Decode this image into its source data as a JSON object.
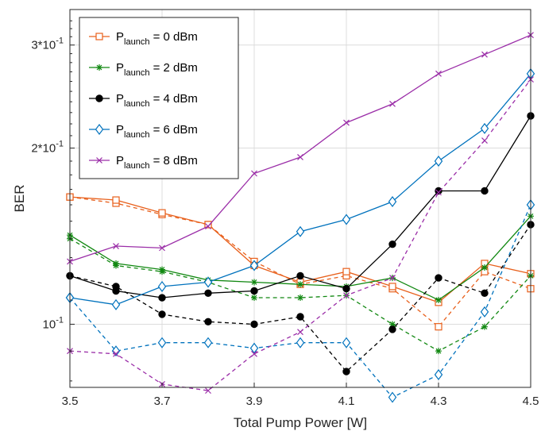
{
  "chart_data": {
    "type": "line",
    "xlabel": "Total Pump Power [W]",
    "ylabel": "BER",
    "x": [
      3.5,
      3.6,
      3.7,
      3.8,
      3.9,
      4.0,
      4.1,
      4.2,
      4.3,
      4.4,
      4.5
    ],
    "xlim": [
      3.5,
      4.5
    ],
    "ylim": [
      0.078,
      0.345
    ],
    "yscale": "log",
    "xticks": [
      "3.5",
      "3.7",
      "3.9",
      "4.1",
      "4.3",
      "4.5"
    ],
    "yticks": [
      {
        "value": 0.1,
        "label": "10^-1"
      },
      {
        "value": 0.2,
        "label": "2*10^-1"
      },
      {
        "value": 0.3,
        "label": "3*10^-1"
      }
    ],
    "grid": true,
    "legend_position": "top-left",
    "series": [
      {
        "legend_main": "P",
        "legend_sub": "launch",
        "legend_rest": " = 0 dBm",
        "color": "#E8601C",
        "marker": "square",
        "solid": [
          0.165,
          0.163,
          0.155,
          0.148,
          0.126,
          0.118,
          0.123,
          0.116,
          0.109,
          0.127,
          0.122
        ],
        "dashed": [
          0.165,
          0.161,
          0.154,
          0.148,
          0.128,
          0.117,
          0.121,
          0.115,
          0.099,
          0.123,
          0.115
        ]
      },
      {
        "legend_main": "P",
        "legend_sub": "launch",
        "legend_rest": " = 2 dBm",
        "color": "#118811",
        "marker": "star",
        "solid": [
          0.142,
          0.127,
          0.124,
          0.119,
          0.118,
          0.117,
          0.116,
          0.12,
          0.11,
          0.125,
          0.153
        ],
        "dashed": [
          0.14,
          0.126,
          0.123,
          0.118,
          0.111,
          0.111,
          0.112,
          0.1,
          0.09,
          0.099,
          0.121
        ]
      },
      {
        "legend_main": "P",
        "legend_sub": "launch",
        "legend_rest": " = 4 dBm",
        "color": "#000000",
        "marker": "dot",
        "solid": [
          0.121,
          0.114,
          0.111,
          0.113,
          0.114,
          0.121,
          0.115,
          0.137,
          0.169,
          0.169,
          0.227
        ],
        "dashed": [
          0.121,
          0.116,
          0.104,
          0.101,
          0.1,
          0.103,
          0.083,
          0.098,
          0.12,
          0.113,
          0.148
        ]
      },
      {
        "legend_main": "P",
        "legend_sub": "launch",
        "legend_rest": " = 6 dBm",
        "color": "#0072BD",
        "marker": "diamond",
        "solid": [
          0.111,
          0.108,
          0.116,
          0.118,
          0.126,
          0.144,
          0.151,
          0.162,
          0.19,
          0.216,
          0.268
        ],
        "dashed": [
          0.111,
          0.09,
          0.093,
          0.093,
          0.091,
          0.093,
          0.093,
          0.075,
          0.082,
          0.105,
          0.16
        ]
      },
      {
        "legend_main": "P",
        "legend_sub": "launch",
        "legend_rest": " = 8 dBm",
        "color": "#9B2EA8",
        "marker": "x",
        "solid": [
          0.128,
          0.136,
          0.135,
          0.147,
          0.181,
          0.193,
          0.221,
          0.238,
          0.268,
          0.289,
          0.312
        ],
        "dashed": [
          0.09,
          0.089,
          0.079,
          0.077,
          0.089,
          0.097,
          0.112,
          0.12,
          0.168,
          0.206,
          0.262
        ]
      }
    ]
  }
}
